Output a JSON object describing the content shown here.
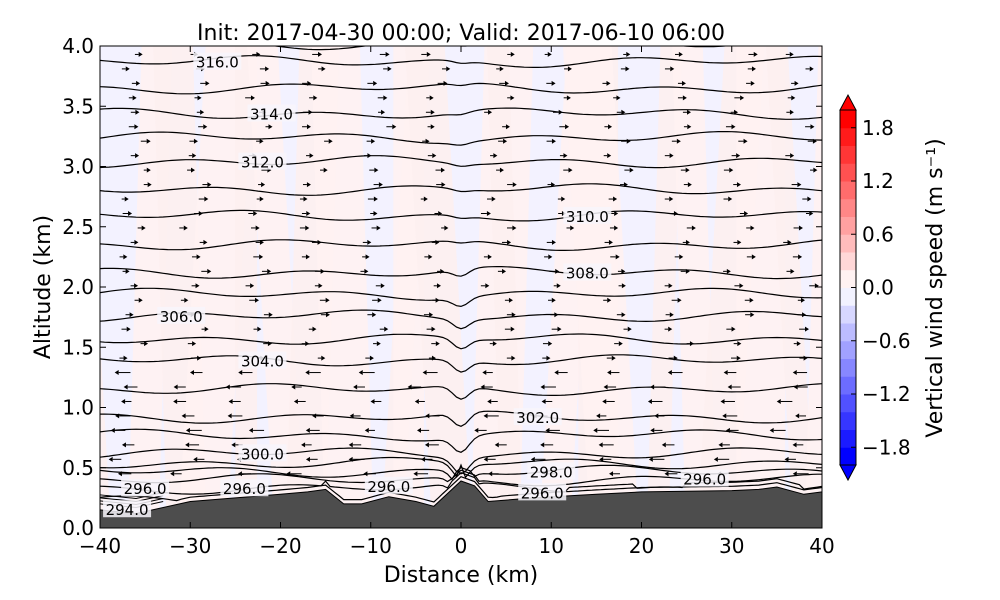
{
  "chart_data": {
    "type": "heatmap",
    "title": "Init: 2017-04-30 00:00; Valid: 2017-06-10 06:00",
    "xlabel": "Distance (km)",
    "ylabel": "Altitude (km)",
    "xlim": [
      -40,
      40
    ],
    "ylim": [
      0.0,
      4.0
    ],
    "x_ticks": [
      "−40",
      "−30",
      "−20",
      "−10",
      "0",
      "10",
      "20",
      "30",
      "40"
    ],
    "y_ticks": [
      "0.0",
      "0.5",
      "1.0",
      "1.5",
      "2.0",
      "2.5",
      "3.0",
      "3.5",
      "4.0"
    ],
    "grid": false,
    "colorbar": {
      "label": "Vertical wind speed (m s⁻¹)",
      "range": [
        -2.0,
        2.0
      ],
      "step": 0.2,
      "extend": "both",
      "colormap": "bwr",
      "ticks": [
        "1.8",
        "1.2",
        "0.6",
        "0.0",
        "−0.6",
        "−1.2",
        "−1.8"
      ],
      "low_color": "#0000ff",
      "high_color": "#ff0000"
    },
    "contour_labels": [
      {
        "text": "316.0",
        "x": -27,
        "y": 3.87
      },
      {
        "text": "314.0",
        "x": -21,
        "y": 3.44
      },
      {
        "text": "312.0",
        "x": -22,
        "y": 3.04
      },
      {
        "text": "310.0",
        "x": 14,
        "y": 2.59
      },
      {
        "text": "308.0",
        "x": 14,
        "y": 2.12
      },
      {
        "text": "306.0",
        "x": -31,
        "y": 1.76
      },
      {
        "text": "304.0",
        "x": -22,
        "y": 1.39
      },
      {
        "text": "302.0",
        "x": 8.5,
        "y": 0.92
      },
      {
        "text": "300.0",
        "x": -22,
        "y": 0.62
      },
      {
        "text": "298.0",
        "x": 10,
        "y": 0.47
      },
      {
        "text": "296.0",
        "x": -35,
        "y": 0.33
      },
      {
        "text": "296.0",
        "x": -24,
        "y": 0.33
      },
      {
        "text": "296.0",
        "x": -8,
        "y": 0.35
      },
      {
        "text": "296.0",
        "x": 9,
        "y": 0.32
      },
      {
        "text": "296.0",
        "x": 27,
        "y": 0.41
      },
      {
        "text": "294.0",
        "x": -37,
        "y": 0.28
      }
    ],
    "contour_levels": {
      "min": 294,
      "max": 317,
      "step": 1
    },
    "terrain": {
      "color": "#4d4d4d",
      "x": [
        -40,
        -36,
        -30,
        -25,
        -20,
        -17,
        -15,
        -13,
        -11,
        -8,
        -5,
        -3,
        0,
        1.5,
        3,
        8,
        15,
        20,
        30,
        33,
        35,
        38,
        40
      ],
      "height_km": [
        0.15,
        0.12,
        0.22,
        0.25,
        0.28,
        0.3,
        0.32,
        0.2,
        0.2,
        0.26,
        0.22,
        0.18,
        0.39,
        0.35,
        0.22,
        0.25,
        0.28,
        0.3,
        0.31,
        0.32,
        0.34,
        0.28,
        0.3
      ]
    }
  }
}
